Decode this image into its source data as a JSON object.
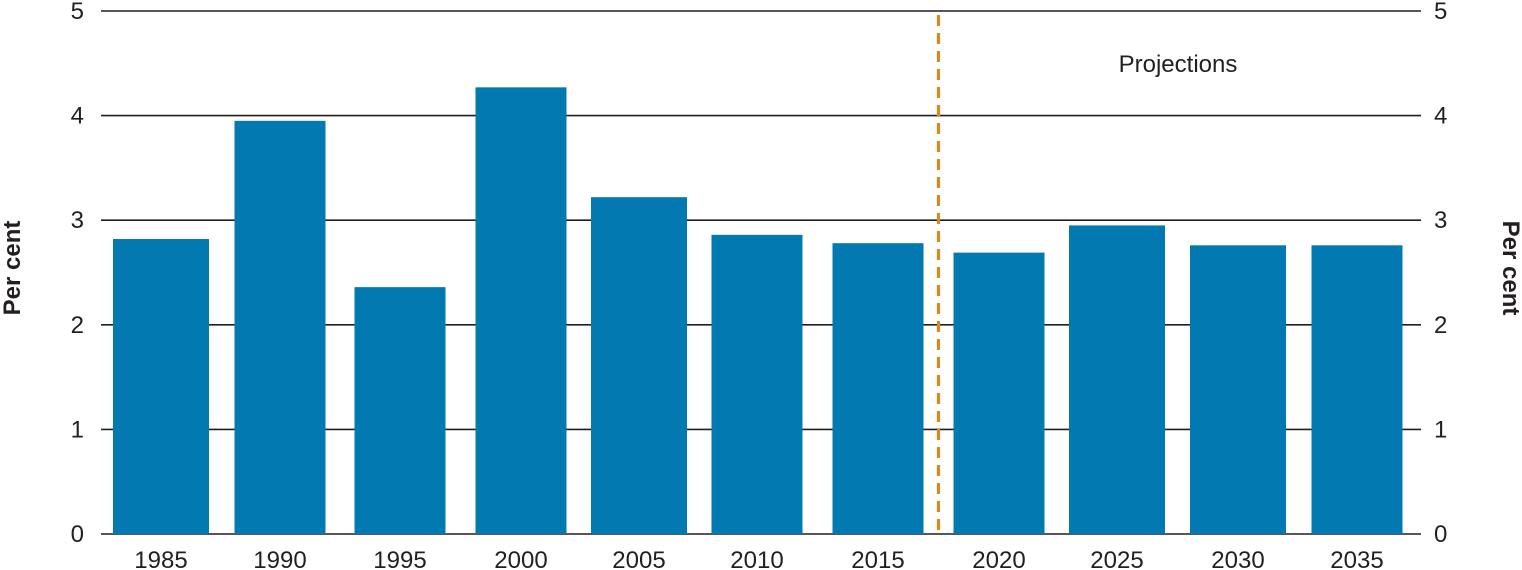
{
  "chart_data": {
    "type": "bar",
    "title": "",
    "xlabel": "",
    "ylabel": "Per cent",
    "ylabel_right": "Per cent",
    "ylim": [
      0,
      5
    ],
    "yticks": [
      "0",
      "1",
      "2",
      "3",
      "4",
      "5"
    ],
    "grid": true,
    "categories": [
      "1985",
      "1990",
      "1995",
      "2000",
      "2005",
      "2010",
      "2015",
      "2020",
      "2025",
      "2030",
      "2035"
    ],
    "values": [
      2.82,
      3.95,
      2.36,
      4.27,
      3.22,
      2.86,
      2.78,
      2.69,
      2.95,
      2.76,
      2.76
    ],
    "bar_color": "#0279b0",
    "divider": {
      "after_category": "2015",
      "color": "#d98a1e",
      "style": "dashed"
    },
    "annotations": [
      {
        "text": "Projections"
      }
    ]
  }
}
